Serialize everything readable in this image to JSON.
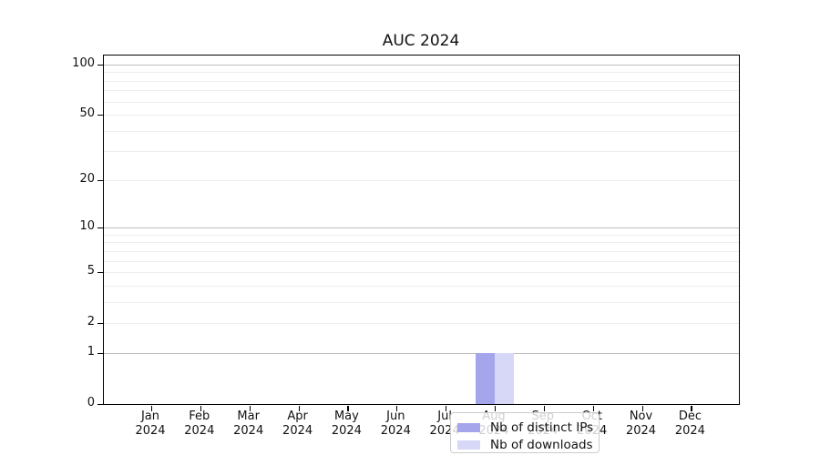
{
  "figure": {
    "title": "AUC 2024"
  },
  "chart_data": {
    "type": "bar",
    "title": "AUC 2024",
    "xlabel": "",
    "ylabel": "",
    "yscale": "log10(1+value), 0 at baseline",
    "ylim": [
      0,
      113
    ],
    "grid": "horizontal only; faint minor lines, darker lines at 1/10/100",
    "legend_position": "lower center inside plot",
    "categories": [
      "Jan",
      "Feb",
      "Mar",
      "Apr",
      "May",
      "Jun",
      "Jul",
      "Aug",
      "Sep",
      "Oct",
      "Nov",
      "Dec"
    ],
    "category_year": "2024",
    "yticks": [
      0,
      1,
      2,
      5,
      10,
      20,
      50,
      100
    ],
    "major_gridline_values": [
      1,
      10,
      100
    ],
    "minor_gridline_values": [
      2,
      3,
      4,
      5,
      6,
      7,
      8,
      9,
      20,
      30,
      40,
      50,
      60,
      70,
      80,
      90
    ],
    "series": [
      {
        "name": "Nb of distinct IPs",
        "color": "#a5a5eb",
        "values": [
          0,
          0,
          0,
          0,
          0,
          0,
          0,
          1,
          0,
          0,
          0,
          0
        ]
      },
      {
        "name": "Nb of downloads",
        "color": "#d7d7f8",
        "values": [
          0,
          0,
          0,
          0,
          0,
          0,
          0,
          1,
          0,
          0,
          0,
          0
        ]
      }
    ],
    "colors": {
      "axis": "#000000",
      "major_grid": "#bdbdbd",
      "minor_grid": "#ededed",
      "legend_border": "#cccccc"
    }
  }
}
